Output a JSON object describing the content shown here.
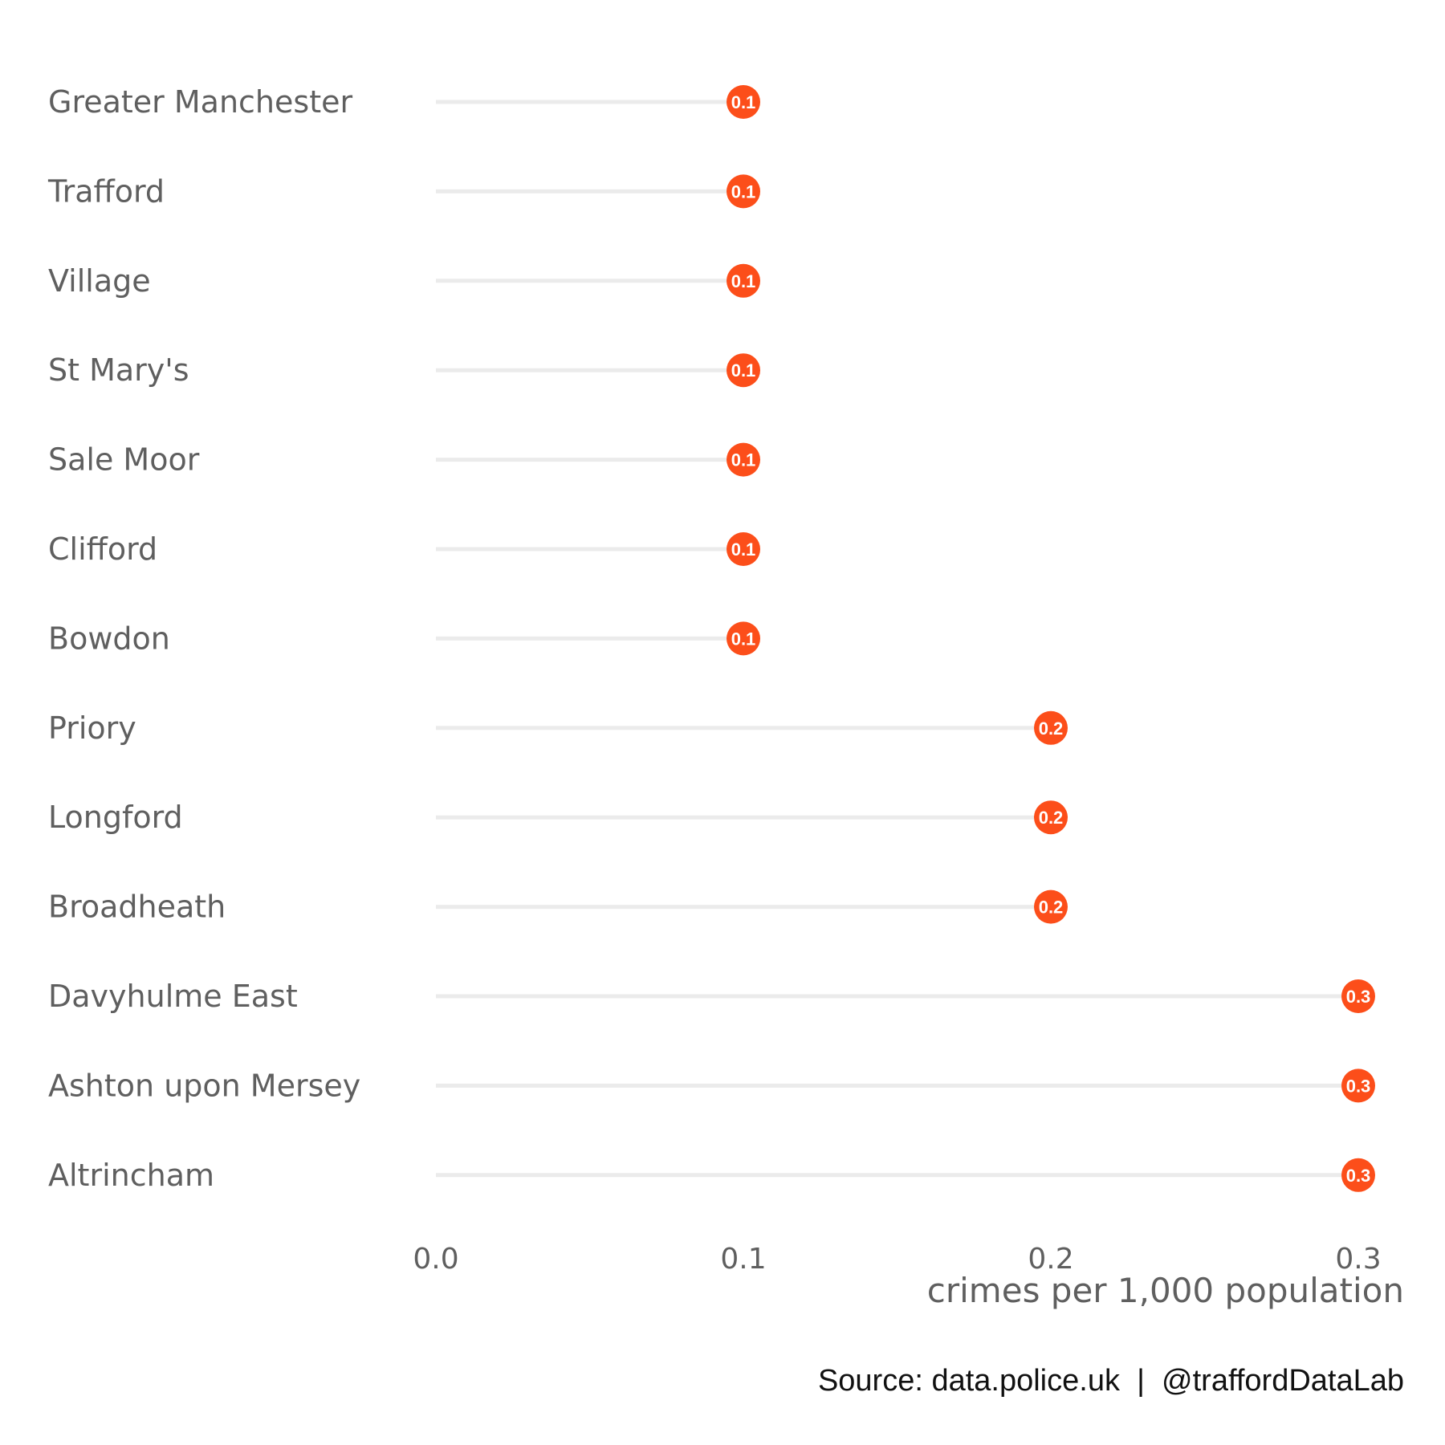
{
  "colors": {
    "marker": "#FC4E1A",
    "stem": "#EBEBEB",
    "text": "#5F5F5F",
    "caption": "#111111",
    "background": "#FFFFFF"
  },
  "chart_data": {
    "type": "lollipop",
    "orientation": "horizontal",
    "categories": [
      "Greater Manchester",
      "Trafford",
      "Village",
      "St Mary's",
      "Sale Moor",
      "Clifford",
      "Bowdon",
      "Priory",
      "Longford",
      "Broadheath",
      "Davyhulme East",
      "Ashton upon Mersey",
      "Altrincham"
    ],
    "values": [
      0.1,
      0.1,
      0.1,
      0.1,
      0.1,
      0.1,
      0.1,
      0.2,
      0.2,
      0.2,
      0.3,
      0.3,
      0.3
    ],
    "data_labels": [
      "0.1",
      "0.1",
      "0.1",
      "0.1",
      "0.1",
      "0.1",
      "0.1",
      "0.2",
      "0.2",
      "0.2",
      "0.3",
      "0.3",
      "0.3"
    ],
    "xlabel": "crimes per 1,000 population",
    "ylabel": "",
    "xlim": [
      0,
      0.3
    ],
    "xticks": [
      0,
      0.1,
      0.2,
      0.3
    ],
    "xtick_labels": [
      "0.0",
      "0.1",
      "0.2",
      "0.3"
    ],
    "grid": false,
    "legend": "none"
  },
  "caption": "Source: data.police.uk  |  @traffordDataLab"
}
